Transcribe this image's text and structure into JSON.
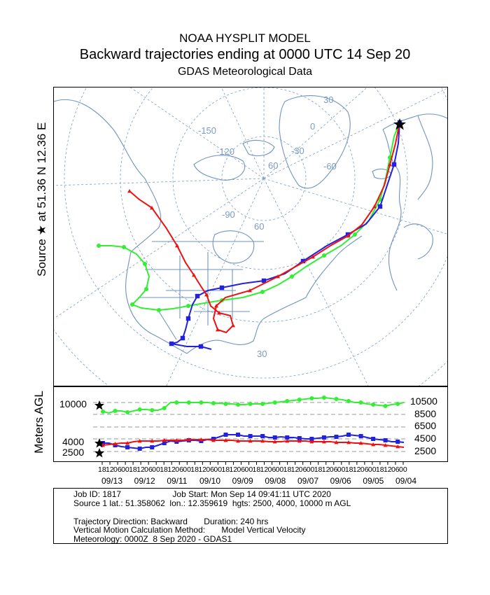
{
  "header": {
    "model": "NOAA HYSPLIT MODEL",
    "title": "Backward trajectories ending at 0000 UTC 14 Sep 20",
    "subtitle": "GDAS Meteorological Data"
  },
  "source_label": "Source ★ at 51.36 N 12.36 E",
  "height_panel": {
    "axis_label": "Meters AGL",
    "left_levels": [
      "10000",
      "4000",
      "2500"
    ],
    "right_levels": [
      "10500",
      "8500",
      "6500",
      "4500",
      "2500"
    ]
  },
  "time_axis": {
    "hour_labels": [
      "18",
      "12",
      "06",
      "00",
      "18",
      "12",
      "06",
      "00",
      "18",
      "12",
      "06",
      "00",
      "18",
      "12",
      "06",
      "00",
      "18",
      "12",
      "06",
      "00",
      "18",
      "12",
      "06",
      "00",
      "18",
      "12",
      "06",
      "00",
      "18",
      "12",
      "06",
      "00",
      "18",
      "12",
      "06",
      "00",
      "18",
      "12",
      "06",
      "00"
    ],
    "date_labels": [
      "09/13",
      "09/12",
      "09/11",
      "09/10",
      "09/09",
      "09/08",
      "09/07",
      "09/06",
      "09/05",
      "09/04"
    ]
  },
  "map": {
    "graticule_labels": [
      "30",
      "0",
      "-150",
      "-120",
      "-30",
      "60",
      "-60",
      "-90",
      "60",
      "30"
    ]
  },
  "colors": {
    "high": "#33ee33",
    "mid": "#2222dd",
    "low": "#ee1111",
    "graticule": "#7a9cc6",
    "land": "#6f93c0"
  },
  "trajectories": [
    {
      "level_m": 10000,
      "color": "green",
      "marker": "circle"
    },
    {
      "level_m": 4000,
      "color": "blue",
      "marker": "square"
    },
    {
      "level_m": 2500,
      "color": "red",
      "marker": "triangle"
    }
  ],
  "info": {
    "line1": "Job ID: 1817                      Job Start: Mon Sep 14 09:41:11 UTC 2020",
    "line2": "Source 1 lat.: 51.358062  lon.: 12.359619  hgts: 2500, 4000, 10000 m AGL",
    "line3": "Trajectory Direction: Backward       Duration: 240 hrs",
    "line4": "Vertical Motion Calculation Method:       Model Vertical Velocity",
    "line5": "Meteorology: 0000Z  8 Sep 2020 - GDAS1"
  }
}
